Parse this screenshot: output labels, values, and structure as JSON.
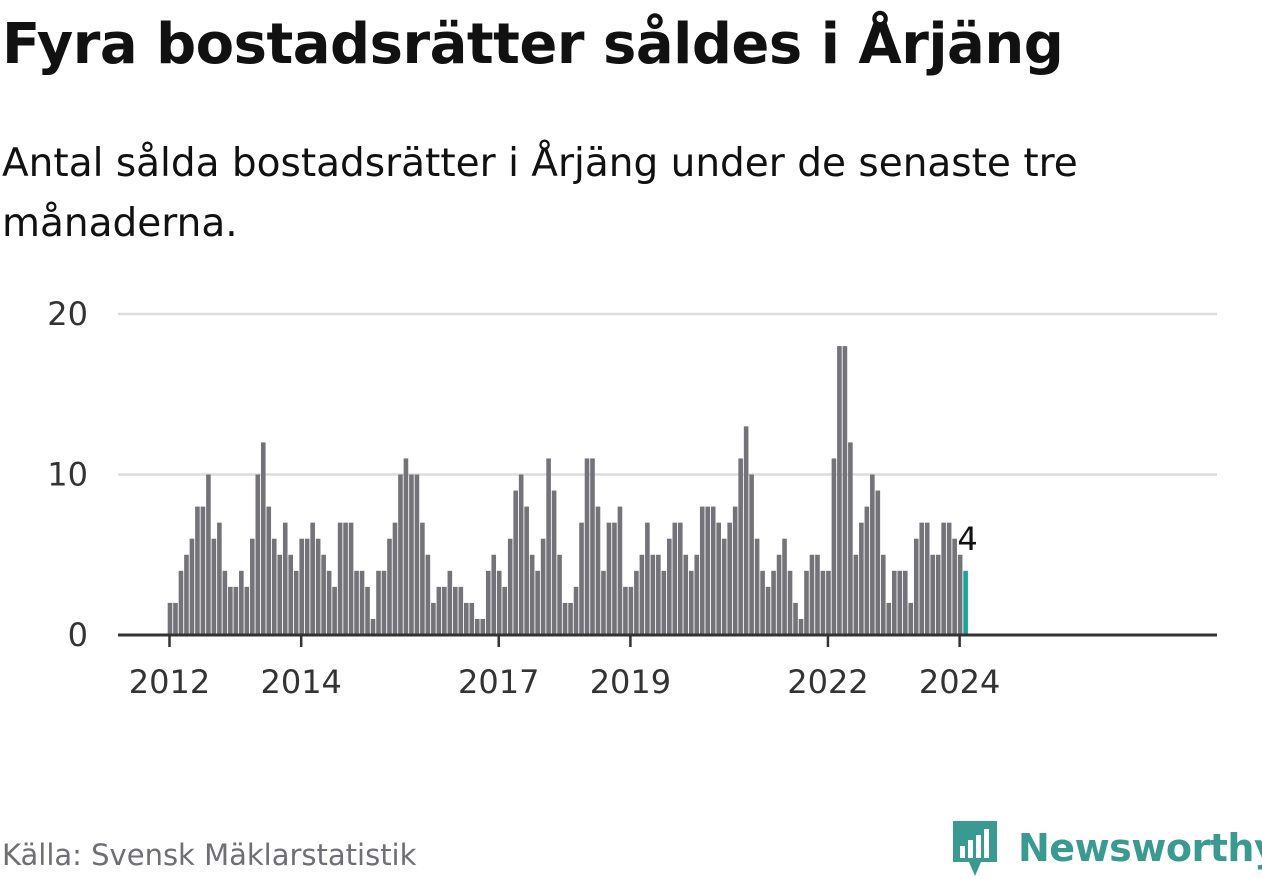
{
  "header": {
    "title": "Fyra bostadsrätter såldes i Årjäng",
    "subtitle": "Antal sålda bostadsrätter i Årjäng under de senaste tre månaderna."
  },
  "footer": {
    "source": "Källa: Svensk Mäklarstatistik",
    "brand": "Newsworthy",
    "logo_icon": "newsworthy-logo-icon"
  },
  "colors": {
    "bar": "#737379",
    "highlight": "#1aa39a",
    "grid": "#dddddd",
    "axis": "#333333",
    "brand": "#3a9a91"
  },
  "chart_data": {
    "type": "bar",
    "title": "Fyra bostadsrätter såldes i Årjäng",
    "xlabel": "",
    "ylabel": "",
    "ylim": [
      0,
      20
    ],
    "yticks": [
      0,
      10,
      20
    ],
    "grid": true,
    "legend": "none",
    "start": "2012-01",
    "x_ticks": [
      {
        "label": "2012",
        "index": 0
      },
      {
        "label": "2014",
        "index": 24
      },
      {
        "label": "2017",
        "index": 60
      },
      {
        "label": "2019",
        "index": 84
      },
      {
        "label": "2022",
        "index": 120
      },
      {
        "label": "2024",
        "index": 144
      }
    ],
    "values": [
      2,
      2,
      4,
      5,
      6,
      8,
      8,
      10,
      6,
      7,
      4,
      3,
      3,
      4,
      3,
      6,
      10,
      12,
      8,
      6,
      5,
      7,
      5,
      4,
      6,
      6,
      7,
      6,
      5,
      4,
      3,
      7,
      7,
      7,
      4,
      4,
      3,
      1,
      4,
      4,
      6,
      7,
      10,
      11,
      10,
      10,
      7,
      5,
      2,
      3,
      3,
      4,
      3,
      3,
      2,
      2,
      1,
      1,
      4,
      5,
      4,
      3,
      6,
      9,
      10,
      8,
      5,
      4,
      6,
      11,
      9,
      5,
      2,
      2,
      3,
      7,
      11,
      11,
      8,
      4,
      7,
      7,
      8,
      3,
      3,
      4,
      5,
      7,
      5,
      5,
      4,
      6,
      7,
      7,
      5,
      4,
      5,
      8,
      8,
      8,
      7,
      6,
      7,
      8,
      11,
      13,
      10,
      6,
      4,
      3,
      4,
      5,
      6,
      4,
      2,
      1,
      4,
      5,
      5,
      4,
      4,
      11,
      18,
      18,
      12,
      5,
      7,
      8,
      10,
      9,
      5,
      2,
      4,
      4,
      4,
      2,
      6,
      7,
      7,
      5,
      5,
      7,
      7,
      6,
      5,
      4
    ],
    "highlight_index": 145,
    "highlight_label": "4"
  }
}
